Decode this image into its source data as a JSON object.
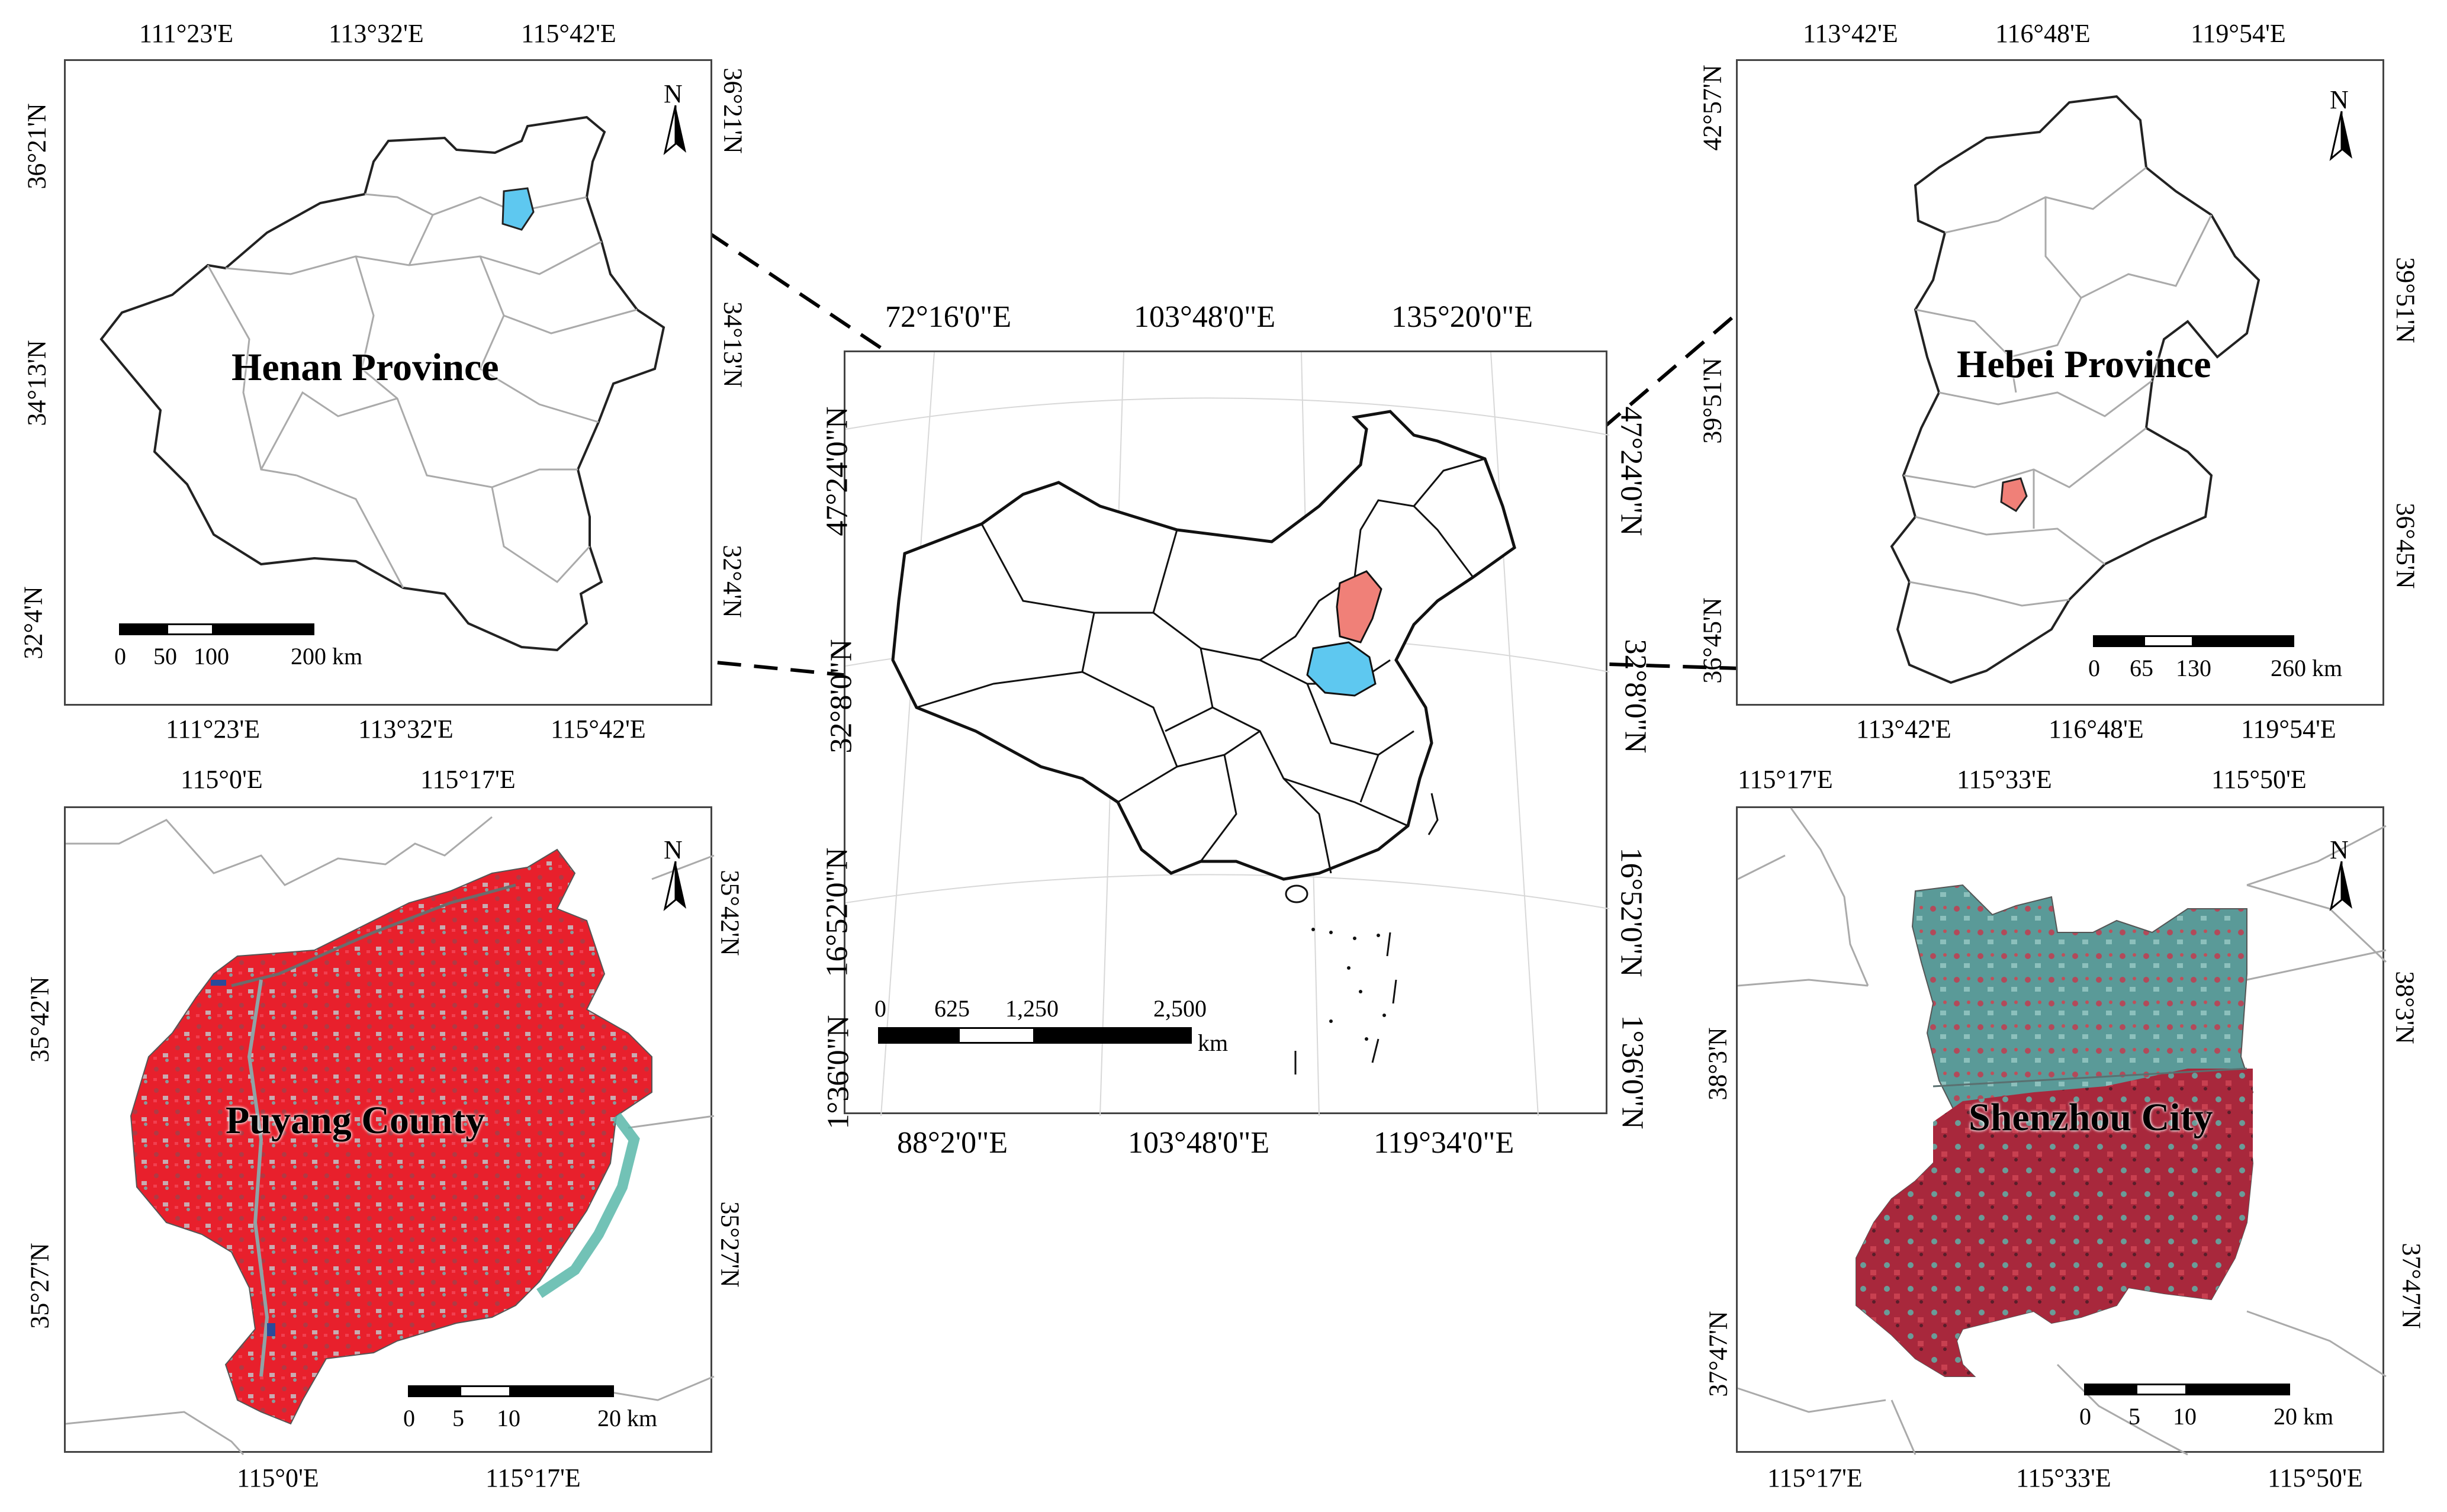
{
  "panels": {
    "henan": {
      "label": "Henan Province",
      "top_ticks": [
        "111°23'E",
        "113°32'E",
        "115°42'E"
      ],
      "bottom_ticks": [
        "111°23'E",
        "113°32'E",
        "115°42'E"
      ],
      "left_ticks": [
        "36°21'N",
        "34°13'N",
        "32°4'N"
      ],
      "right_ticks": [
        "36°21'N",
        "34°13'N",
        "32°4'N"
      ],
      "north": "N",
      "scale": {
        "labels": [
          "0",
          "50",
          "100",
          "200 km"
        ]
      },
      "highlight_color": "#5ec8f0"
    },
    "china": {
      "top_ticks": [
        "72°16'0\"E",
        "103°48'0\"E",
        "135°20'0\"E"
      ],
      "bottom_ticks": [
        "88°2'0\"E",
        "103°48'0\"E",
        "119°34'0\"E"
      ],
      "left_ticks": [
        "47°24'0\"N",
        "32°8'0\"N",
        "16°52'0\"N",
        "1°36'0\"N"
      ],
      "right_ticks": [
        "47°24'0\"N",
        "32°8'0\"N",
        "16°52'0\"N",
        "1°36'0\"N"
      ],
      "scale": {
        "labels": [
          "0",
          "625",
          "1,250",
          "2,500"
        ],
        "unit": "km"
      }
    },
    "hebei": {
      "label": "Hebei Province",
      "top_ticks": [
        "113°42'E",
        "116°48'E",
        "119°54'E"
      ],
      "bottom_ticks": [
        "113°42'E",
        "116°48'E",
        "119°54'E"
      ],
      "left_ticks": [
        "42°57'N",
        "39°51'N",
        "36°45'N"
      ],
      "right_ticks": [
        "39°51'N",
        "36°45'N"
      ],
      "north": "N",
      "scale": {
        "labels": [
          "0",
          "65",
          "130",
          "260 km"
        ]
      },
      "highlight_color": "#f08078"
    },
    "puyang": {
      "label": "Puyang County",
      "top_ticks": [
        "115°0'E",
        "115°17'E"
      ],
      "bottom_ticks": [
        "115°0'E",
        "115°17'E"
      ],
      "left_ticks": [
        "35°42'N",
        "35°27'N"
      ],
      "right_ticks": [
        "35°42'N",
        "35°27'N"
      ],
      "north": "N",
      "scale": {
        "labels": [
          "0",
          "5",
          "10",
          "20 km"
        ]
      }
    },
    "shenzhou": {
      "label": "Shenzhou City",
      "top_ticks": [
        "115°17'E",
        "115°33'E",
        "115°50'E"
      ],
      "bottom_ticks": [
        "115°17'E",
        "115°33'E",
        "115°50'E"
      ],
      "left_ticks": [
        "38°3'N",
        "37°47'N"
      ],
      "right_ticks": [
        "38°3'N",
        "37°47'N"
      ],
      "north": "N",
      "scale": {
        "labels": [
          "0",
          "5",
          "10",
          "20 km"
        ]
      }
    }
  }
}
